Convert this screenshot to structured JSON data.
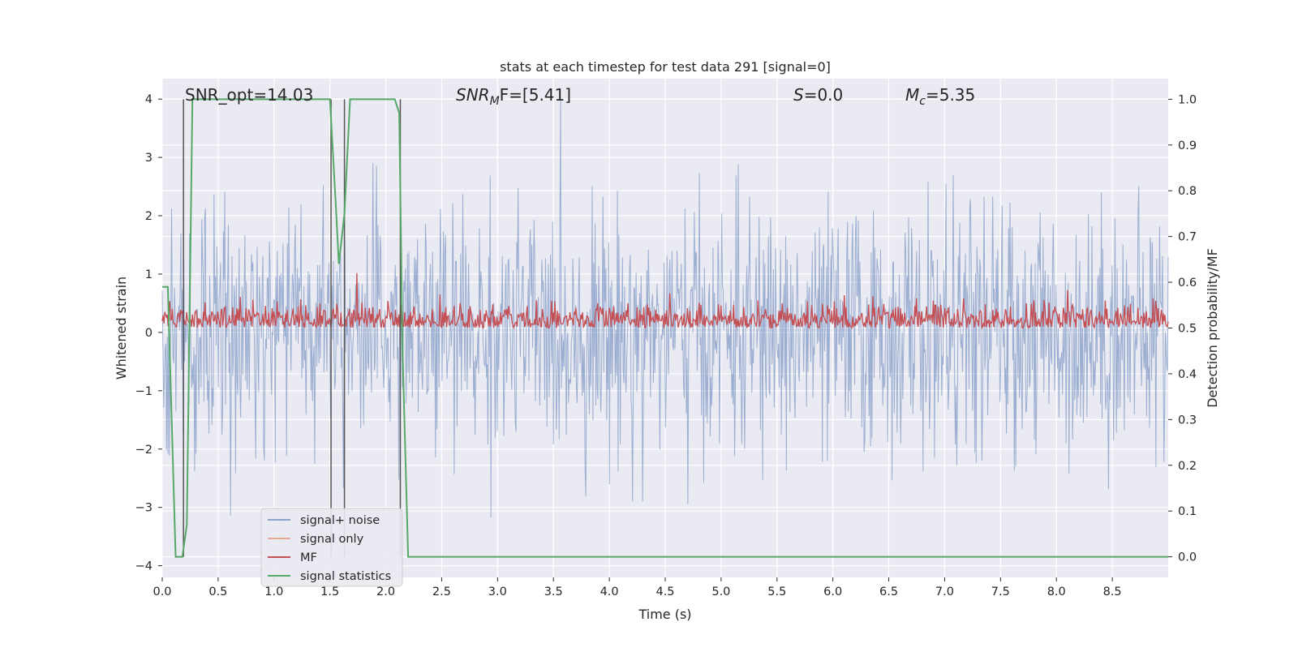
{
  "chart_data": {
    "type": "line",
    "title": "stats at each timestep for test data 291 [signal=0]",
    "xlabel": "Time (s)",
    "ylabel": "Whitened strain",
    "ylabel_right": "Detection probability/MF",
    "xlim": [
      0,
      9.0
    ],
    "ylim": [
      -4.2,
      4.35
    ],
    "ylim_right": [
      -0.045,
      1.045
    ],
    "x_ticks": [
      "0.0",
      "0.5",
      "1.0",
      "1.5",
      "2.0",
      "2.5",
      "3.0",
      "3.5",
      "4.0",
      "4.5",
      "5.0",
      "5.5",
      "6.0",
      "6.5",
      "7.0",
      "7.5",
      "8.0",
      "8.5"
    ],
    "y_ticks": [
      "−4",
      "−3",
      "−2",
      "−1",
      "0",
      "1",
      "2",
      "3",
      "4"
    ],
    "y_ticks_right": [
      "0.0",
      "0.1",
      "0.2",
      "0.3",
      "0.4",
      "0.5",
      "0.6",
      "0.7",
      "0.8",
      "0.9",
      "1.0"
    ],
    "grid": true,
    "legend_position": "lower-left",
    "annotations": {
      "snr_opt": "SNR_opt=14.03",
      "snr_mf_italic": "SNR",
      "snr_mf_sub": "M",
      "snr_mf_rest": "F=[5.41]",
      "s_italic": "S",
      "s_rest": "=0.0",
      "mc_italic": "M",
      "mc_sub": "c",
      "mc_rest": "=5.35"
    },
    "colors": {
      "plot_bg": "#eaeaf2",
      "grid": "#ffffff",
      "noise": "#4c72b0",
      "signal": "#dd8452",
      "mf": "#c44e52",
      "stats": "#55a868",
      "vlines": "#555555"
    },
    "series": [
      {
        "name": "signal+ noise",
        "note_style": "noisy band",
        "y_typical": [
          -2.6,
          2.6
        ],
        "y_extreme": [
          -3.7,
          4.0
        ]
      },
      {
        "name": "signal only",
        "values": []
      },
      {
        "name": "MF",
        "axis": "right",
        "band": [
          0.5,
          0.56
        ],
        "peak": {
          "x": 1.74,
          "y": 0.62
        }
      },
      {
        "name": "signal statistics",
        "axis": "right",
        "x": [
          0.0,
          0.05,
          0.12,
          0.18,
          0.22,
          0.27,
          1.5,
          1.55,
          1.58,
          1.63,
          1.68,
          1.73,
          2.08,
          2.12,
          2.15,
          2.2,
          8.3,
          8.35,
          9.0
        ],
        "y": [
          0.59,
          0.59,
          0.0,
          0.0,
          0.07,
          1.0,
          1.0,
          0.78,
          0.64,
          0.75,
          1.0,
          1.0,
          1.0,
          0.97,
          0.45,
          0.0,
          0.0,
          0.0,
          0.0
        ]
      }
    ],
    "vlines_x": [
      0.19,
      1.51,
      1.63,
      2.13
    ]
  }
}
